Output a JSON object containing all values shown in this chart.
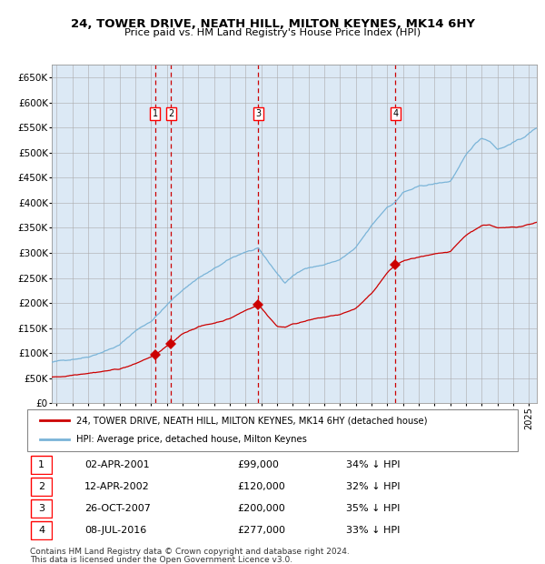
{
  "title": "24, TOWER DRIVE, NEATH HILL, MILTON KEYNES, MK14 6HY",
  "subtitle": "Price paid vs. HM Land Registry's House Price Index (HPI)",
  "legend_line1": "24, TOWER DRIVE, NEATH HILL, MILTON KEYNES, MK14 6HY (detached house)",
  "legend_line2": "HPI: Average price, detached house, Milton Keynes",
  "footer1": "Contains HM Land Registry data © Crown copyright and database right 2024.",
  "footer2": "This data is licensed under the Open Government Licence v3.0.",
  "sales": [
    {
      "num": 1,
      "date": "02-APR-2001",
      "price": 99000,
      "price_str": "£99,000",
      "pct": "34% ↓ HPI",
      "year": 2001.25
    },
    {
      "num": 2,
      "date": "12-APR-2002",
      "price": 120000,
      "price_str": "£120,000",
      "pct": "32% ↓ HPI",
      "year": 2002.28
    },
    {
      "num": 3,
      "date": "26-OCT-2007",
      "price": 200000,
      "price_str": "£200,000",
      "pct": "35% ↓ HPI",
      "year": 2007.82
    },
    {
      "num": 4,
      "date": "08-JUL-2016",
      "price": 277000,
      "price_str": "£277,000",
      "pct": "33% ↓ HPI",
      "year": 2016.52
    }
  ],
  "hpi_color": "#7ab4d8",
  "price_color": "#cc0000",
  "background_color": "#dce9f5",
  "grid_color": "#aaaaaa",
  "vline_color": "#cc0000",
  "ylim": [
    0,
    675000
  ],
  "xlim_start": 1994.7,
  "xlim_end": 2025.5
}
